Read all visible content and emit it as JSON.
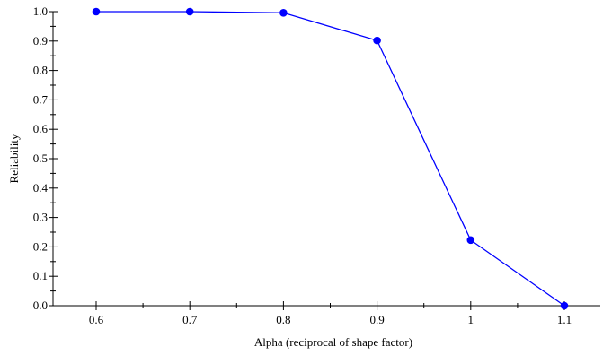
{
  "chart_data": {
    "type": "line",
    "title": "",
    "xlabel": "Alpha (reciprocal of shape factor)",
    "ylabel": "Reliability",
    "xlim": [
      0.55,
      1.15
    ],
    "ylim": [
      0.0,
      1.0
    ],
    "x_ticks": [
      "0.6",
      "0.7",
      "0.8",
      "0.9",
      "1",
      "1.1"
    ],
    "y_ticks": [
      "0.0",
      "0.1",
      "0.2",
      "0.3",
      "0.4",
      "0.5",
      "0.6",
      "0.7",
      "0.8",
      "0.9",
      "1.0"
    ],
    "grid": false,
    "legend": "none",
    "series": [
      {
        "x": [
          0.6,
          0.7,
          0.8,
          0.9,
          1.0,
          1.1
        ],
        "values": [
          1.0,
          1.0,
          0.996,
          0.902,
          0.223,
          0.0
        ],
        "color": "#0000ff",
        "marker": "circle"
      }
    ]
  }
}
